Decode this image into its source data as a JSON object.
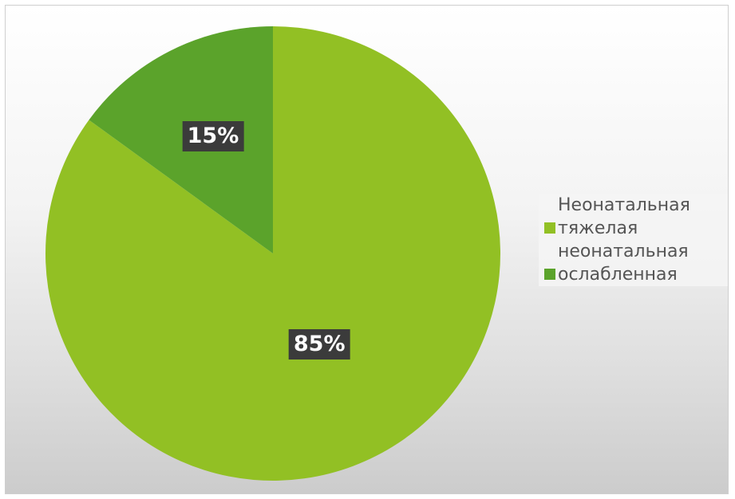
{
  "chart_data": {
    "type": "pie",
    "series": [
      {
        "name": "",
        "slices": [
          {
            "label": "Неонатальная тяжелая",
            "value": 85,
            "display": "85%",
            "color": "#92c024"
          },
          {
            "label": "неонатальная ослабленная",
            "value": 15,
            "display": "15%",
            "color": "#5ba32b"
          }
        ]
      }
    ],
    "legend": {
      "position": "right",
      "items": [
        {
          "lines": [
            "Неонатальная",
            "тяжелая"
          ],
          "color": "#92c024"
        },
        {
          "lines": [
            "неонатальная",
            "ослабленная"
          ],
          "color": "#5ba32b"
        }
      ]
    },
    "start_angle": "12 o'clock",
    "direction": "clockwise"
  }
}
